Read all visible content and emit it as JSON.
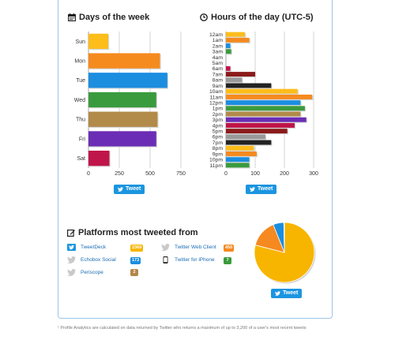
{
  "days_section": {
    "title": "Days of the week",
    "icon": "calendar-icon"
  },
  "hours_section": {
    "title": "Hours of the day (UTC-5)",
    "icon": "clock-icon"
  },
  "platforms_section": {
    "title": "Platforms most tweeted from",
    "icon": "edit-icon"
  },
  "tweet_button_label": "Tweet",
  "footnote": "¹ Profile Analytics are calculated on data returned by Twitter who returns a maximum of up to 3,200 of a user's most recent tweets",
  "colors": {
    "panel_border": "#9fc3e8",
    "tweet_button": "#1b95e0"
  },
  "platforms": [
    {
      "name": "TweetDeck",
      "count": "2369",
      "color": "#f7b500",
      "icon": "tweetdeck-bird-icon"
    },
    {
      "name": "Echobox Social",
      "count": "173",
      "color": "#1b8ee0",
      "icon": "twitter-bird-icon"
    },
    {
      "name": "Periscope",
      "count": "2",
      "color": "#b3874a",
      "icon": "twitter-bird-icon"
    },
    {
      "name": "Twitter Web Client",
      "count": "450",
      "color": "#f6891f",
      "icon": "twitter-bird-icon"
    },
    {
      "name": "Twitter for iPhone",
      "count": "7",
      "color": "#3a9a3a",
      "icon": "iphone-icon"
    }
  ],
  "chart_data": [
    {
      "type": "bar",
      "orientation": "horizontal",
      "title": "Days of the week",
      "categories": [
        "Sun",
        "Mon",
        "Tue",
        "Wed",
        "Thu",
        "Fri",
        "Sat"
      ],
      "values": [
        160,
        580,
        640,
        550,
        560,
        550,
        170
      ],
      "colors": [
        "#fdbd1a",
        "#f58a1f",
        "#1b8ee0",
        "#3a9b3e",
        "#b28a4a",
        "#6b2db5",
        "#c0154a"
      ],
      "xlim": [
        0,
        750
      ],
      "xticks": [
        "0",
        "250",
        "500",
        "750"
      ],
      "grid": true
    },
    {
      "type": "bar",
      "orientation": "horizontal",
      "title": "Hours of the day (UTC-5)",
      "categories": [
        "12am",
        "1am",
        "2am",
        "3am",
        "4am",
        "5am",
        "6am",
        "7am",
        "8am",
        "9am",
        "10am",
        "11am",
        "12pm",
        "1pm",
        "2pm",
        "3pm",
        "4pm",
        "5pm",
        "6pm",
        "7pm",
        "8pm",
        "9pm",
        "10pm",
        "11pm"
      ],
      "values": [
        65,
        80,
        15,
        18,
        0,
        0,
        15,
        100,
        55,
        155,
        245,
        295,
        255,
        270,
        255,
        275,
        235,
        210,
        135,
        155,
        95,
        105,
        80,
        80
      ],
      "colors": [
        "#fdbd1a",
        "#f58a1f",
        "#1b8ee0",
        "#3a9b3e",
        "#b28a4a",
        "#6b2db5",
        "#c0154a",
        "#8b1a1a",
        "#9a9a9a",
        "#222222",
        "#fdbd1a",
        "#f58a1f",
        "#1b8ee0",
        "#3a9b3e",
        "#b28a4a",
        "#6b2db5",
        "#c0154a",
        "#8b1a1a",
        "#9a9a9a",
        "#222222",
        "#fdbd1a",
        "#f58a1f",
        "#1b8ee0",
        "#3a9b3e"
      ],
      "xlim": [
        0,
        300
      ],
      "xticks": [
        "0",
        "100",
        "200",
        "300"
      ],
      "grid": true
    },
    {
      "type": "pie",
      "title": "Platforms most tweeted from",
      "categories": [
        "TweetDeck",
        "Twitter Web Client",
        "Echobox Social",
        "Twitter for iPhone",
        "Periscope"
      ],
      "values": [
        2369,
        450,
        173,
        7,
        2
      ],
      "colors": [
        "#f7b500",
        "#f6891f",
        "#1b8ee0",
        "#3a9a3a",
        "#b3874a"
      ]
    }
  ]
}
